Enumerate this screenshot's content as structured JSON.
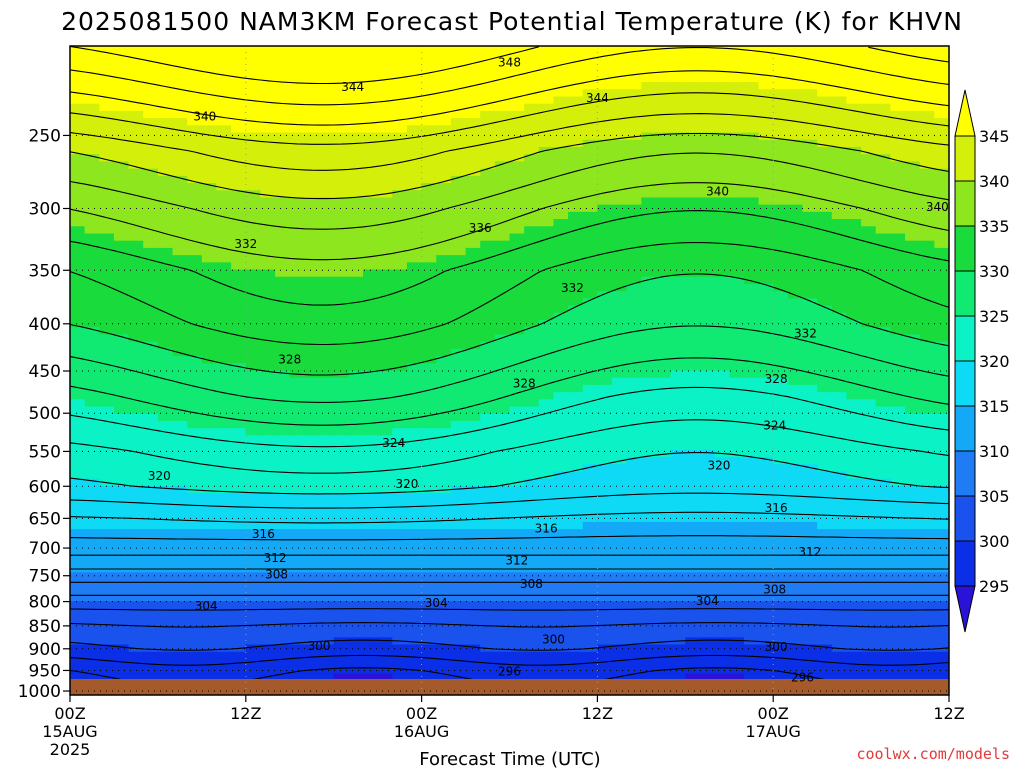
{
  "chart_data": {
    "type": "heatmap",
    "title": "2025081500 NAM3KM Forecast Potential Temperature (K) for KHVN",
    "xlabel": "Forecast Time (UTC)",
    "ylabel": "",
    "x_ticks": [
      {
        "hour": 0,
        "label": "00Z",
        "sub": "15AUG",
        "sub2": "2025"
      },
      {
        "hour": 12,
        "label": "12Z",
        "sub": "",
        "sub2": ""
      },
      {
        "hour": 24,
        "label": "00Z",
        "sub": "16AUG",
        "sub2": ""
      },
      {
        "hour": 36,
        "label": "12Z",
        "sub": "",
        "sub2": ""
      },
      {
        "hour": 48,
        "label": "00Z",
        "sub": "17AUG",
        "sub2": ""
      },
      {
        "hour": 60,
        "label": "12Z",
        "sub": "",
        "sub2": ""
      }
    ],
    "xlim": [
      0,
      60
    ],
    "y_pressure_ticks": [
      250,
      300,
      350,
      400,
      450,
      500,
      550,
      600,
      650,
      700,
      750,
      800,
      850,
      900,
      950,
      1000
    ],
    "ylim": [
      1010,
      200
    ],
    "y_scale": "log",
    "color_levels": [
      295,
      300,
      305,
      310,
      315,
      320,
      325,
      330,
      335,
      340,
      345
    ],
    "colors": [
      "#2a13d6",
      "#0b2fe6",
      "#1a52ee",
      "#1f7cf5",
      "#14a9f7",
      "#0fdaf5",
      "#0bf2c7",
      "#10ea72",
      "#19dc3c",
      "#8ee61e",
      "#d4f00a",
      "#ffff00"
    ],
    "contour_labels": [
      {
        "text": "348",
        "hour": 30.0,
        "p": 208
      },
      {
        "text": "344",
        "hour": 19.3,
        "p": 221
      },
      {
        "text": "344",
        "hour": 36.0,
        "p": 227
      },
      {
        "text": "340",
        "hour": 9.2,
        "p": 238
      },
      {
        "text": "340",
        "hour": 44.2,
        "p": 287
      },
      {
        "text": "340",
        "hour": 59.2,
        "p": 298
      },
      {
        "text": "336",
        "hour": 28.0,
        "p": 314
      },
      {
        "text": "332",
        "hour": 12.0,
        "p": 327
      },
      {
        "text": "332",
        "hour": 34.3,
        "p": 365
      },
      {
        "text": "332",
        "hour": 50.2,
        "p": 409
      },
      {
        "text": "328",
        "hour": 15.0,
        "p": 436
      },
      {
        "text": "328",
        "hour": 31.0,
        "p": 463
      },
      {
        "text": "328",
        "hour": 48.2,
        "p": 458
      },
      {
        "text": "324",
        "hour": 22.1,
        "p": 537
      },
      {
        "text": "324",
        "hour": 48.1,
        "p": 514
      },
      {
        "text": "320",
        "hour": 6.1,
        "p": 583
      },
      {
        "text": "320",
        "hour": 23.0,
        "p": 595
      },
      {
        "text": "320",
        "hour": 44.3,
        "p": 568
      },
      {
        "text": "316",
        "hour": 13.2,
        "p": 674
      },
      {
        "text": "316",
        "hour": 32.5,
        "p": 665
      },
      {
        "text": "316",
        "hour": 48.2,
        "p": 632
      },
      {
        "text": "312",
        "hour": 14.0,
        "p": 716
      },
      {
        "text": "312",
        "hour": 30.5,
        "p": 720
      },
      {
        "text": "312",
        "hour": 50.5,
        "p": 705
      },
      {
        "text": "308",
        "hour": 14.1,
        "p": 746
      },
      {
        "text": "308",
        "hour": 31.5,
        "p": 764
      },
      {
        "text": "308",
        "hour": 48.1,
        "p": 774
      },
      {
        "text": "304",
        "hour": 9.3,
        "p": 807
      },
      {
        "text": "304",
        "hour": 25.0,
        "p": 801
      },
      {
        "text": "304",
        "hour": 43.5,
        "p": 797
      },
      {
        "text": "300",
        "hour": 17.0,
        "p": 891
      },
      {
        "text": "300",
        "hour": 33.0,
        "p": 877
      },
      {
        "text": "300",
        "hour": 48.2,
        "p": 894
      },
      {
        "text": "296",
        "hour": 30.0,
        "p": 950
      },
      {
        "text": "296",
        "hour": 50.0,
        "p": 964
      }
    ],
    "grid": true,
    "legend": "colorbar-right"
  },
  "credit": "coolwx.com/models"
}
